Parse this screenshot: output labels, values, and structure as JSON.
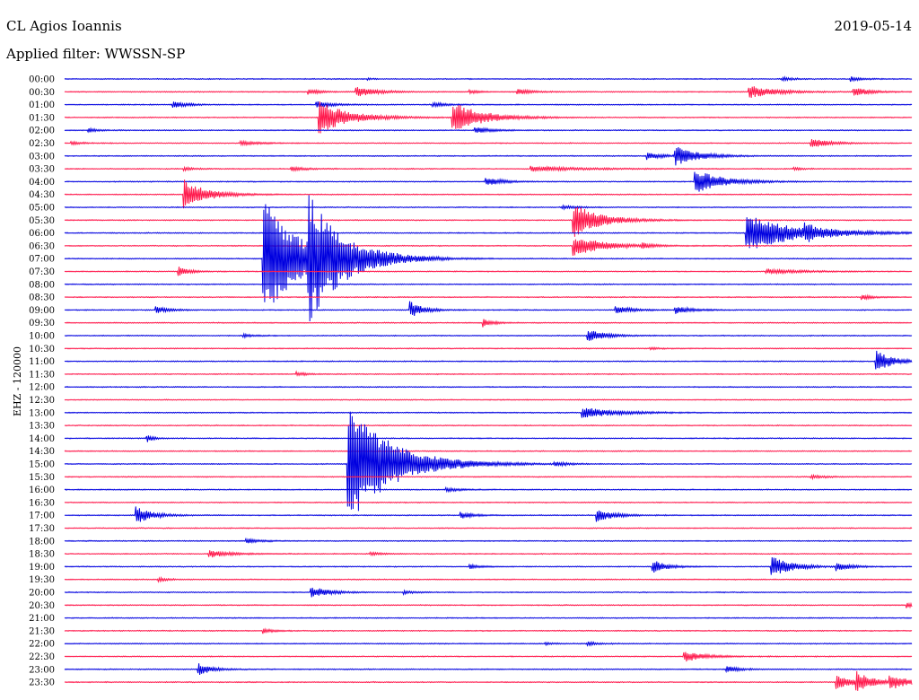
{
  "header": {
    "station": "CL Agios Ioannis",
    "date": "2019-05-14",
    "filter": "Applied filter: WWSSN-SP"
  },
  "channel_label": "EHZ - 120000",
  "colors": {
    "trace_a": "#0000e0",
    "trace_b": "#ff1a4d",
    "background": "#ffffff",
    "text": "#000000"
  },
  "chart_data": {
    "type": "line",
    "title": "",
    "xlabel": "",
    "ylabel": "EHZ - 120000",
    "grid": false,
    "legend": "none",
    "row_labels": [
      "00:00",
      "00:30",
      "01:00",
      "01:30",
      "02:00",
      "02:30",
      "03:00",
      "03:30",
      "04:00",
      "04:30",
      "05:00",
      "05:30",
      "06:00",
      "06:30",
      "07:00",
      "07:30",
      "08:00",
      "08:30",
      "09:00",
      "09:30",
      "10:00",
      "10:30",
      "11:00",
      "11:30",
      "12:00",
      "12:30",
      "13:00",
      "13:30",
      "14:00",
      "14:30",
      "15:00",
      "15:30",
      "16:00",
      "16:30",
      "17:00",
      "17:30",
      "18:00",
      "18:30",
      "19:00",
      "19:30",
      "20:00",
      "20:30",
      "21:00",
      "21:30",
      "22:00",
      "22:30",
      "23:00",
      "23:30"
    ],
    "row_colors": [
      "trace_a",
      "trace_b"
    ],
    "x_range_minutes": [
      0,
      30
    ],
    "events": [
      {
        "row": 0,
        "minute": 10.7,
        "amp": 0.25,
        "dur": 0.2
      },
      {
        "row": 0,
        "minute": 25.4,
        "amp": 0.3,
        "dur": 0.6
      },
      {
        "row": 0,
        "minute": 27.8,
        "amp": 0.4,
        "dur": 0.6
      },
      {
        "row": 1,
        "minute": 8.6,
        "amp": 0.4,
        "dur": 0.8
      },
      {
        "row": 1,
        "minute": 10.3,
        "amp": 0.8,
        "dur": 1.2
      },
      {
        "row": 1,
        "minute": 14.3,
        "amp": 0.3,
        "dur": 0.6
      },
      {
        "row": 1,
        "minute": 16.0,
        "amp": 0.4,
        "dur": 1.0
      },
      {
        "row": 1,
        "minute": 24.2,
        "amp": 1.0,
        "dur": 1.6
      },
      {
        "row": 1,
        "minute": 27.9,
        "amp": 0.7,
        "dur": 1.0
      },
      {
        "row": 2,
        "minute": 3.8,
        "amp": 0.6,
        "dur": 0.8
      },
      {
        "row": 2,
        "minute": 8.9,
        "amp": 0.5,
        "dur": 1.0
      },
      {
        "row": 2,
        "minute": 13.0,
        "amp": 0.4,
        "dur": 0.8
      },
      {
        "row": 3,
        "minute": 9.0,
        "amp": 2.6,
        "dur": 1.8
      },
      {
        "row": 3,
        "minute": 13.7,
        "amp": 2.6,
        "dur": 1.8
      },
      {
        "row": 4,
        "minute": 0.8,
        "amp": 0.3,
        "dur": 0.6
      },
      {
        "row": 4,
        "minute": 14.5,
        "amp": 0.5,
        "dur": 1.0
      },
      {
        "row": 5,
        "minute": 0.2,
        "amp": 0.3,
        "dur": 0.6
      },
      {
        "row": 5,
        "minute": 6.2,
        "amp": 0.3,
        "dur": 1.2
      },
      {
        "row": 5,
        "minute": 26.4,
        "amp": 0.9,
        "dur": 1.0
      },
      {
        "row": 6,
        "minute": 20.6,
        "amp": 0.6,
        "dur": 1.0
      },
      {
        "row": 6,
        "minute": 21.6,
        "amp": 1.5,
        "dur": 1.4
      },
      {
        "row": 7,
        "minute": 4.2,
        "amp": 0.3,
        "dur": 0.6
      },
      {
        "row": 7,
        "minute": 8.0,
        "amp": 0.3,
        "dur": 1.0
      },
      {
        "row": 7,
        "minute": 16.5,
        "amp": 0.4,
        "dur": 3.0
      },
      {
        "row": 7,
        "minute": 25.8,
        "amp": 0.2,
        "dur": 0.6
      },
      {
        "row": 8,
        "minute": 14.9,
        "amp": 0.7,
        "dur": 1.0
      },
      {
        "row": 8,
        "minute": 22.3,
        "amp": 2.0,
        "dur": 1.6
      },
      {
        "row": 9,
        "minute": 4.2,
        "amp": 2.4,
        "dur": 1.4
      },
      {
        "row": 10,
        "minute": 17.6,
        "amp": 0.3,
        "dur": 0.8
      },
      {
        "row": 11,
        "minute": 18.0,
        "amp": 2.8,
        "dur": 1.6
      },
      {
        "row": 12,
        "minute": 24.1,
        "amp": 3.0,
        "dur": 3.0
      },
      {
        "row": 12,
        "minute": 26.2,
        "amp": 0.8,
        "dur": 1.0
      },
      {
        "row": 13,
        "minute": 18.0,
        "amp": 1.6,
        "dur": 1.8
      },
      {
        "row": 13,
        "minute": 20.4,
        "amp": 0.4,
        "dur": 0.6
      },
      {
        "row": 14,
        "minute": 7.0,
        "amp": 10.0,
        "dur": 2.2
      },
      {
        "row": 14,
        "minute": 8.6,
        "amp": 8.0,
        "dur": 2.2
      },
      {
        "row": 15,
        "minute": 4.0,
        "amp": 0.8,
        "dur": 0.6
      },
      {
        "row": 15,
        "minute": 24.8,
        "amp": 0.4,
        "dur": 2.0
      },
      {
        "row": 17,
        "minute": 28.2,
        "amp": 0.5,
        "dur": 0.6
      },
      {
        "row": 18,
        "minute": 3.2,
        "amp": 0.6,
        "dur": 0.8
      },
      {
        "row": 18,
        "minute": 12.2,
        "amp": 1.4,
        "dur": 0.8
      },
      {
        "row": 18,
        "minute": 19.5,
        "amp": 0.6,
        "dur": 1.0
      },
      {
        "row": 18,
        "minute": 21.6,
        "amp": 0.6,
        "dur": 1.0
      },
      {
        "row": 19,
        "minute": 14.8,
        "amp": 0.7,
        "dur": 0.6
      },
      {
        "row": 20,
        "minute": 6.3,
        "amp": 0.3,
        "dur": 0.6
      },
      {
        "row": 20,
        "minute": 18.5,
        "amp": 1.0,
        "dur": 1.0
      },
      {
        "row": 21,
        "minute": 20.7,
        "amp": 0.2,
        "dur": 0.6
      },
      {
        "row": 22,
        "minute": 28.7,
        "amp": 1.8,
        "dur": 1.0
      },
      {
        "row": 23,
        "minute": 8.2,
        "amp": 0.3,
        "dur": 0.6
      },
      {
        "row": 26,
        "minute": 18.3,
        "amp": 0.8,
        "dur": 2.2
      },
      {
        "row": 28,
        "minute": 2.9,
        "amp": 0.6,
        "dur": 0.4
      },
      {
        "row": 30,
        "minute": 10.0,
        "amp": 10.0,
        "dur": 2.6
      },
      {
        "row": 30,
        "minute": 17.3,
        "amp": 0.3,
        "dur": 1.0
      },
      {
        "row": 31,
        "minute": 26.4,
        "amp": 0.3,
        "dur": 0.8
      },
      {
        "row": 32,
        "minute": 13.5,
        "amp": 0.3,
        "dur": 0.8
      },
      {
        "row": 34,
        "minute": 2.5,
        "amp": 1.4,
        "dur": 1.0
      },
      {
        "row": 34,
        "minute": 14.0,
        "amp": 0.5,
        "dur": 0.8
      },
      {
        "row": 34,
        "minute": 18.8,
        "amp": 1.1,
        "dur": 1.0
      },
      {
        "row": 36,
        "minute": 6.4,
        "amp": 0.4,
        "dur": 0.8
      },
      {
        "row": 37,
        "minute": 5.1,
        "amp": 0.6,
        "dur": 1.2
      },
      {
        "row": 37,
        "minute": 10.8,
        "amp": 0.3,
        "dur": 0.6
      },
      {
        "row": 38,
        "minute": 14.3,
        "amp": 0.4,
        "dur": 0.6
      },
      {
        "row": 38,
        "minute": 20.8,
        "amp": 1.2,
        "dur": 0.8
      },
      {
        "row": 38,
        "minute": 25.0,
        "amp": 1.7,
        "dur": 1.2
      },
      {
        "row": 38,
        "minute": 27.3,
        "amp": 0.7,
        "dur": 0.8
      },
      {
        "row": 39,
        "minute": 3.3,
        "amp": 0.3,
        "dur": 0.6
      },
      {
        "row": 40,
        "minute": 8.7,
        "amp": 1.0,
        "dur": 1.0
      },
      {
        "row": 40,
        "minute": 12.0,
        "amp": 0.3,
        "dur": 0.6
      },
      {
        "row": 41,
        "minute": 29.8,
        "amp": 0.5,
        "dur": 0.4
      },
      {
        "row": 43,
        "minute": 7.0,
        "amp": 0.4,
        "dur": 0.6
      },
      {
        "row": 44,
        "minute": 17.0,
        "amp": 0.2,
        "dur": 0.6
      },
      {
        "row": 44,
        "minute": 18.5,
        "amp": 0.3,
        "dur": 0.6
      },
      {
        "row": 45,
        "minute": 21.9,
        "amp": 0.9,
        "dur": 1.2
      },
      {
        "row": 46,
        "minute": 4.7,
        "amp": 1.0,
        "dur": 0.8
      },
      {
        "row": 46,
        "minute": 23.4,
        "amp": 0.5,
        "dur": 0.8
      },
      {
        "row": 47,
        "minute": 27.3,
        "amp": 1.2,
        "dur": 1.0
      },
      {
        "row": 47,
        "minute": 28.0,
        "amp": 1.5,
        "dur": 1.0
      },
      {
        "row": 47,
        "minute": 29.2,
        "amp": 1.2,
        "dur": 1.0
      }
    ]
  }
}
